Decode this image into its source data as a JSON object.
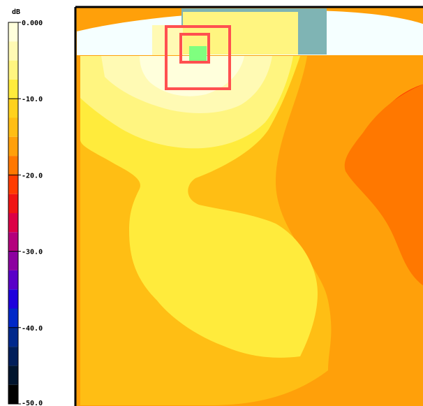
{
  "chart_data": {
    "type": "heatmap",
    "unit": "dB",
    "scale": {
      "min": -50.0,
      "max": 0.0,
      "ticks": [
        {
          "value": 0.0,
          "label": "0.000"
        },
        {
          "value": -10.0,
          "label": "-10.0"
        },
        {
          "value": -20.0,
          "label": "-20.0"
        },
        {
          "value": -30.0,
          "label": "-30.0"
        },
        {
          "value": -40.0,
          "label": "-40.0"
        },
        {
          "value": -50.0,
          "label": "-50.0"
        }
      ],
      "bands": [
        {
          "from": 0.0,
          "to": -2.5,
          "color": "#ffffdc"
        },
        {
          "from": -2.5,
          "to": -5.0,
          "color": "#fffab4"
        },
        {
          "from": -5.0,
          "to": -7.5,
          "color": "#fff580"
        },
        {
          "from": -7.5,
          "to": -10.0,
          "color": "#ffeb3c"
        },
        {
          "from": -10.0,
          "to": -12.5,
          "color": "#ffd21e"
        },
        {
          "from": -12.5,
          "to": -15.0,
          "color": "#ffbe14"
        },
        {
          "from": -15.0,
          "to": -17.5,
          "color": "#ffa00a"
        },
        {
          "from": -17.5,
          "to": -20.0,
          "color": "#ff7800"
        },
        {
          "from": -20.0,
          "to": -22.5,
          "color": "#ff3c00"
        },
        {
          "from": -22.5,
          "to": -25.0,
          "color": "#f01414"
        },
        {
          "from": -25.0,
          "to": -27.5,
          "color": "#dc0046"
        },
        {
          "from": -27.5,
          "to": -30.0,
          "color": "#b4007d"
        },
        {
          "from": -30.0,
          "to": -32.5,
          "color": "#8c00a0"
        },
        {
          "from": -32.5,
          "to": -35.0,
          "color": "#5a00c8"
        },
        {
          "from": -35.0,
          "to": -37.5,
          "color": "#1e00dc"
        },
        {
          "from": -37.5,
          "to": -40.0,
          "color": "#0028c8"
        },
        {
          "from": -40.0,
          "to": -42.5,
          "color": "#00288c"
        },
        {
          "from": -42.5,
          "to": -45.0,
          "color": "#001e5a"
        },
        {
          "from": -45.0,
          "to": -47.5,
          "color": "#00142d"
        },
        {
          "from": -47.5,
          "to": -50.0,
          "color": "#000000"
        }
      ]
    },
    "colors": {
      "background_light": "#f5ffff",
      "obstacle": "#7fb4b4",
      "marker_outline": "#ff5050",
      "source": "#7fff7f",
      "frame": "#000000"
    }
  }
}
